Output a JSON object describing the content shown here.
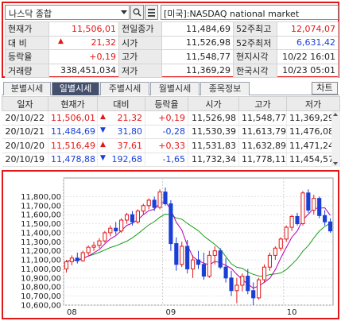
{
  "search": {
    "index_name": "나스닥 종합",
    "market_label": "[미국]:NASDAQ national market"
  },
  "quote": {
    "rows": [
      {
        "l1": "현재가",
        "v1": "11,506,01",
        "l2": "전일종가",
        "v2": "11,484,69",
        "l3": "52주최고",
        "v3": "12,074,07"
      },
      {
        "l1": "대  비",
        "v1": "21,32",
        "l2": "시가",
        "v2": "11,526,98",
        "l3": "52주최저",
        "v3": "6,631,42"
      },
      {
        "l1": "등락율",
        "v1": "+0,19",
        "l2": "고가",
        "v2": "11,548,77",
        "l3": "현지시각",
        "v3": "10/22 16:01"
      },
      {
        "l1": "거래량",
        "v1": "338,451,034",
        "l2": "저가",
        "v2": "11,369,29",
        "l3": "한국시각",
        "v3": "10/23 05:01"
      }
    ]
  },
  "tabs": [
    "분별시세",
    "일별시세",
    "주별시세",
    "월별시세",
    "종목정보"
  ],
  "chart_button": "차트",
  "daily": {
    "headers": [
      "일자",
      "현재가",
      "대비",
      "등락율",
      "시가",
      "고가",
      "저가"
    ],
    "rows": [
      {
        "date": "20/10/22",
        "price": "11,506,01",
        "dir": "up",
        "change": "21,32",
        "rate": "+0,19",
        "open": "11,526,98",
        "high": "11,548,77",
        "low": "11,369,29"
      },
      {
        "date": "20/10/21",
        "price": "11,484,69",
        "dir": "down",
        "change": "31,80",
        "rate": "-0,28",
        "open": "11,530,39",
        "high": "11,613,79",
        "low": "11,476,08"
      },
      {
        "date": "20/10/20",
        "price": "11,516,49",
        "dir": "up",
        "change": "37,61",
        "rate": "+0,33",
        "open": "11,531,83",
        "high": "11,632,89",
        "low": "11,471,24"
      },
      {
        "date": "20/10/19",
        "price": "11,478,88",
        "dir": "down",
        "change": "192,68",
        "rate": "-1,65",
        "open": "11,732,34",
        "high": "11,778,11",
        "low": "11,454,57"
      }
    ]
  },
  "chart_data": {
    "type": "candlestick",
    "ylim": [
      10600,
      11900
    ],
    "yticks": [
      "11,800,00",
      "11,700,00",
      "11,600,00",
      "11,500,00",
      "11,400,00",
      "11,300,00",
      "11,200,00",
      "11,100,00",
      "11,000,00",
      "10,900,00",
      "10,800,00",
      "10,700,00",
      "10,600,00"
    ],
    "ytick_values": [
      11800,
      11700,
      11600,
      11500,
      11400,
      11300,
      11200,
      11100,
      11000,
      10900,
      10800,
      10700,
      10600
    ],
    "xticks": [
      {
        "label": "08",
        "index": 0
      },
      {
        "label": "09",
        "index": 18
      },
      {
        "label": "10",
        "index": 40
      }
    ],
    "colors": {
      "up": "#e01818",
      "down": "#1a3fd6",
      "ma_short": "#b000b0",
      "ma_long": "#18a018"
    },
    "candles": [
      [
        11000,
        11100,
        10960,
        11080
      ],
      [
        11080,
        11150,
        11040,
        11120
      ],
      [
        11120,
        11180,
        11060,
        11090
      ],
      [
        11090,
        11200,
        11080,
        11180
      ],
      [
        11180,
        11260,
        11150,
        11240
      ],
      [
        11240,
        11300,
        11200,
        11260
      ],
      [
        11260,
        11340,
        11230,
        11310
      ],
      [
        11310,
        11420,
        11290,
        11400
      ],
      [
        11400,
        11480,
        11360,
        11450
      ],
      [
        11450,
        11520,
        11380,
        11420
      ],
      [
        11420,
        11560,
        11400,
        11540
      ],
      [
        11540,
        11620,
        11500,
        11600
      ],
      [
        11600,
        11640,
        11480,
        11520
      ],
      [
        11520,
        11660,
        11500,
        11640
      ],
      [
        11640,
        11720,
        11600,
        11700
      ],
      [
        11700,
        11780,
        11660,
        11760
      ],
      [
        11760,
        11800,
        11640,
        11680
      ],
      [
        11680,
        11880,
        11660,
        11850
      ],
      [
        11850,
        11900,
        11700,
        11720
      ],
      [
        11720,
        11760,
        11200,
        11280
      ],
      [
        11280,
        11350,
        10980,
        11050
      ],
      [
        11050,
        11300,
        11020,
        11250
      ],
      [
        11250,
        11320,
        10950,
        11000
      ],
      [
        11000,
        11150,
        10900,
        11100
      ],
      [
        11100,
        11200,
        11000,
        11050
      ],
      [
        11050,
        11180,
        10880,
        10920
      ],
      [
        10920,
        11200,
        10900,
        11150
      ],
      [
        11150,
        11250,
        11050,
        11200
      ],
      [
        11200,
        11230,
        11000,
        11020
      ],
      [
        11020,
        11120,
        10850,
        10900
      ],
      [
        10900,
        10980,
        10700,
        10760
      ],
      [
        10760,
        10900,
        10620,
        10820
      ],
      [
        10820,
        10950,
        10750,
        10920
      ],
      [
        10920,
        11000,
        10720,
        10760
      ],
      [
        10760,
        10850,
        10600,
        10680
      ],
      [
        10680,
        10900,
        10660,
        10880
      ],
      [
        10880,
        11050,
        10850,
        11020
      ],
      [
        11020,
        11180,
        10980,
        11150
      ],
      [
        11150,
        11250,
        11100,
        11230
      ],
      [
        11230,
        11350,
        11200,
        11330
      ],
      [
        11330,
        11480,
        11300,
        11460
      ],
      [
        11460,
        11600,
        11420,
        11580
      ],
      [
        11580,
        11620,
        11480,
        11500
      ],
      [
        11500,
        11860,
        11480,
        11840
      ],
      [
        11840,
        11880,
        11620,
        11650
      ],
      [
        11650,
        11820,
        11600,
        11780
      ],
      [
        11780,
        11800,
        11560,
        11590
      ],
      [
        11590,
        11650,
        11480,
        11520
      ],
      [
        11520,
        11560,
        11400,
        11420
      ]
    ]
  }
}
